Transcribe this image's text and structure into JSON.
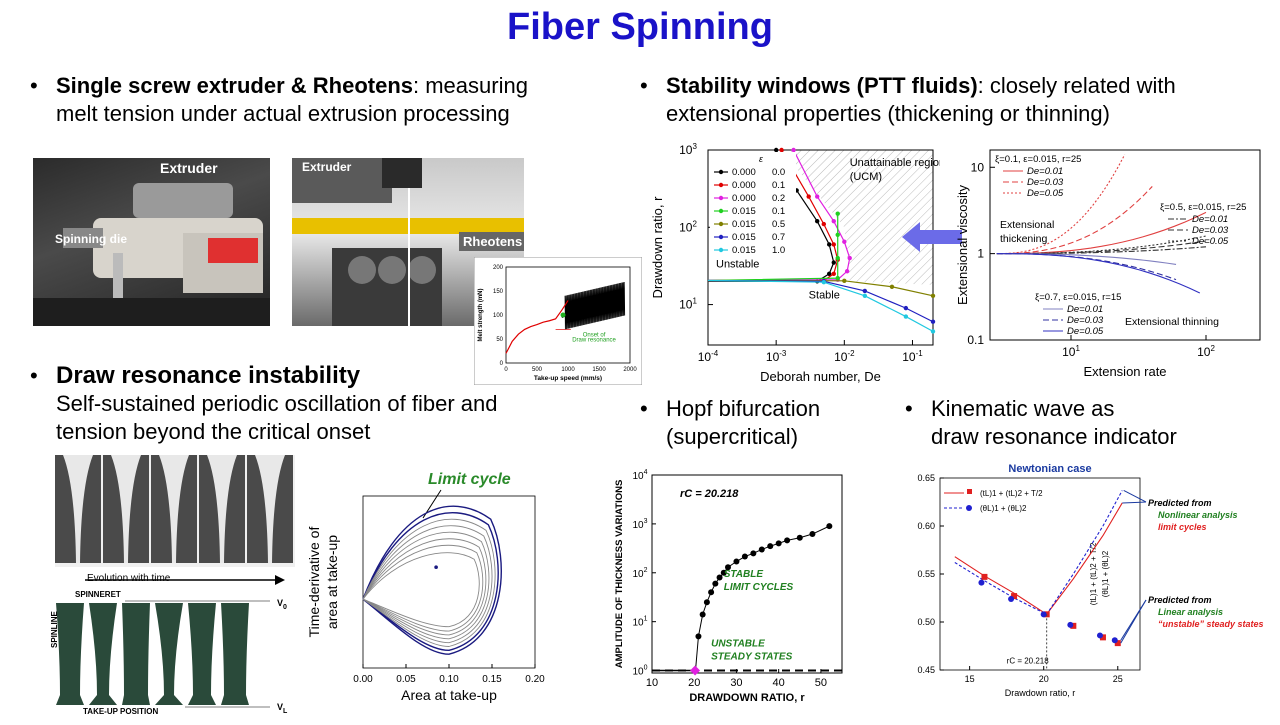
{
  "title": "Fiber Spinning",
  "sec1": {
    "heading": "Single screw extruder & Rheotens",
    "rest1": ": measuring",
    "line2": "melt tension under actual extrusion processing"
  },
  "sec2": {
    "heading": "Stability windows (PTT fluids)",
    "rest1": ": closely related with",
    "line2": "extensional properties (thickening or thinning)"
  },
  "sec3": {
    "heading": "Draw resonance instability",
    "line2": "Self-sustained periodic oscillation of fiber and",
    "line3": "tension beyond the critical onset"
  },
  "sec4": {
    "line1": "Hopf bifurcation",
    "line2": "(supercritical)"
  },
  "sec5": {
    "line1": "Kinematic wave as",
    "line2": "draw resonance indicator"
  },
  "photos": {
    "extruder": "Extruder",
    "die": "Spinning die",
    "extruder2": "Extruder",
    "rheotens": "Rheotens"
  },
  "fiber_img": {
    "evolution": "Evolution with time",
    "spinneret": "SPINNERET",
    "spinline": "SPINLINE",
    "takeup": "TAKE-UP POSITION",
    "v0": "V",
    "v0sub": "0",
    "vl": "V",
    "vlsub": "L"
  },
  "chart_data": [
    {
      "type": "line",
      "id": "melt-strength",
      "xlabel": "Take-up speed (mm/s)",
      "ylabel": "Melt strength (mN)",
      "xlim": [
        0,
        2000
      ],
      "ylim": [
        0,
        200
      ],
      "xticks": [
        "0",
        "500",
        "1000",
        "1500",
        "2000"
      ],
      "yticks": [
        "0",
        "50",
        "100",
        "150",
        "200"
      ],
      "annotation": [
        "Onset of",
        "Draw resonance"
      ],
      "series": [
        {
          "color": "#e00000",
          "x": [
            0,
            100,
            200,
            300,
            400,
            500,
            600,
            700,
            800,
            900,
            1000
          ],
          "values": [
            20,
            45,
            60,
            70,
            76,
            80,
            85,
            88,
            92,
            110,
            130
          ]
        },
        {
          "color": "#000000",
          "x": [
            900,
            1100,
            1300,
            1500,
            1700,
            1900
          ],
          "values": [
            95,
            105,
            115,
            120,
            125,
            130
          ]
        }
      ]
    },
    {
      "type": "line",
      "id": "stability-window",
      "xlabel": "Deborah number, De",
      "ylabel": "Drawdown ratio, r",
      "xscale": "log",
      "yscale": "log",
      "xlim": [
        0.0001,
        0.2
      ],
      "ylim": [
        3,
        1000
      ],
      "xtick_exps": [
        "-4",
        "-3",
        "-2",
        "-1"
      ],
      "ytick_exps": [
        "1",
        "2",
        "3"
      ],
      "legend_header": [
        "ε",
        "ξ"
      ],
      "legend": [
        {
          "eps": "0.000",
          "xi": "0.0",
          "color": "#000000",
          "marker": "square"
        },
        {
          "eps": "0.000",
          "xi": "0.1",
          "color": "#e00000",
          "marker": "circle"
        },
        {
          "eps": "0.000",
          "xi": "0.2",
          "color": "#e020e0",
          "marker": "triangle"
        },
        {
          "eps": "0.015",
          "xi": "0.1",
          "color": "#20d020",
          "marker": "tri-down"
        },
        {
          "eps": "0.015",
          "xi": "0.5",
          "color": "#808000",
          "marker": "tri-right"
        },
        {
          "eps": "0.015",
          "xi": "0.7",
          "color": "#2020c0",
          "marker": "diamond"
        },
        {
          "eps": "0.015",
          "xi": "1.0",
          "color": "#20c8e0",
          "marker": "tri-left"
        }
      ],
      "annotations": [
        "Unattainable region",
        "(UCM)",
        "Unstable",
        "Stable"
      ]
    },
    {
      "type": "line",
      "id": "extensional-viscosity",
      "xlabel": "Extension rate",
      "ylabel": "Extensional viscosity",
      "xscale": "log",
      "yscale": "log",
      "xtick_exps": [
        "1",
        "2"
      ],
      "ytick_labels": [
        "0.1",
        "1",
        "10"
      ],
      "legend_groups": [
        {
          "header": "ξ=0.1, ε=0.015, r=25",
          "items": [
            {
              "name": "De=0.01",
              "color": "#e04040",
              "dash": ""
            },
            {
              "name": "De=0.03",
              "color": "#e04040",
              "dash": "6,3"
            },
            {
              "name": "De=0.05",
              "color": "#e04040",
              "dash": "2,2"
            }
          ]
        },
        {
          "header": "ξ=0.5, ε=0.015, r=25",
          "items": [
            {
              "name": "De=0.01",
              "color": "#333",
              "dash": "6,2,2,2"
            },
            {
              "name": "De=0.03",
              "color": "#333",
              "dash": "6,3"
            },
            {
              "name": "De=0.05",
              "color": "#333",
              "dash": "2,2"
            }
          ]
        },
        {
          "header": "ξ=0.7, ε=0.015, r=15",
          "items": [
            {
              "name": "De=0.01",
              "color": "#8080c0",
              "dash": ""
            },
            {
              "name": "De=0.03",
              "color": "#3030a0",
              "dash": "6,3"
            },
            {
              "name": "De=0.05",
              "color": "#3030c0",
              "dash": ""
            }
          ]
        }
      ],
      "annotations": [
        "Extensional",
        "thickening",
        "Extensional thinning"
      ]
    },
    {
      "type": "scatter",
      "id": "limit-cycle",
      "title": "Limit cycle",
      "xlabel": "Area at take-up",
      "ylabel": [
        "Time-derivative of",
        "area at take-up"
      ],
      "xlim": [
        0,
        0.2
      ],
      "xticks": [
        "0.00",
        "0.05",
        "0.10",
        "0.15",
        "0.20"
      ]
    },
    {
      "type": "scatter",
      "id": "hopf",
      "xlabel": "DRAWDOWN RATIO, r",
      "ylabel": "AMPLITUDE OF THICKNESS VARIATIONS",
      "xlim": [
        10,
        55
      ],
      "xticks": [
        "10",
        "20",
        "30",
        "40",
        "50"
      ],
      "yscale": "log",
      "ytick_exps": [
        "0",
        "1",
        "2",
        "3",
        "4"
      ],
      "rc_label": "rC = 20.218",
      "label_stable": [
        "STABLE",
        "LIMIT  CYCLES"
      ],
      "label_unstable": [
        "UNSTABLE",
        "STEADY STATES"
      ],
      "x": [
        20.3,
        21,
        22,
        23,
        24,
        25,
        26,
        27,
        28,
        30,
        32,
        34,
        36,
        38,
        40,
        42,
        45,
        48,
        52
      ],
      "values": [
        1.0,
        5,
        14,
        25,
        40,
        60,
        80,
        100,
        130,
        170,
        215,
        250,
        300,
        350,
        400,
        460,
        520,
        620,
        900
      ]
    },
    {
      "type": "line",
      "id": "kinematic-wave",
      "title": "Newtonian case",
      "xlabel": "Drawdown ratio, r",
      "ylabel": [
        "(tL)1 + (tL)2 + T/2",
        "(θL)1 + (θL)2"
      ],
      "xlim": [
        13,
        26.5
      ],
      "ylim": [
        0.45,
        0.65
      ],
      "xticks": [
        "15",
        "20",
        "25"
      ],
      "yticks": [
        "0.45",
        "0.50",
        "0.55",
        "0.60",
        "0.65"
      ],
      "legend": [
        "(tL)1 + (tL)2 + T/2",
        "(θL)1 + (θL)2"
      ],
      "rc_label": "rC = 20.218",
      "pred1": [
        "Predicted  from",
        "Nonlinear  analysis",
        "limit cycles"
      ],
      "pred2": [
        "Predicted  from",
        "Linear  analysis",
        "“unstable” steady states"
      ],
      "series": [
        {
          "name": "(tL)1 + (tL)2 + T/2",
          "color": "#e02020",
          "x": [
            14,
            16,
            18,
            20.2,
            22,
            24,
            25.3
          ],
          "values": [
            0.568,
            0.548,
            0.53,
            0.508,
            0.545,
            0.59,
            0.624
          ]
        },
        {
          "name": "(θL)1 + (θL)2",
          "color": "#2020d0",
          "x": [
            14,
            16,
            18,
            20.2,
            22,
            24,
            25.3
          ],
          "values": [
            0.562,
            0.543,
            0.525,
            0.508,
            0.55,
            0.6,
            0.637
          ]
        }
      ],
      "points_red": {
        "x": [
          16,
          18,
          20.2,
          22,
          24,
          25
        ],
        "values": [
          0.547,
          0.527,
          0.508,
          0.496,
          0.484,
          0.478
        ]
      },
      "points_blue": {
        "x": [
          16,
          18,
          20.2,
          22,
          24,
          25
        ],
        "values": [
          0.541,
          0.524,
          0.508,
          0.497,
          0.486,
          0.481
        ]
      }
    }
  ]
}
